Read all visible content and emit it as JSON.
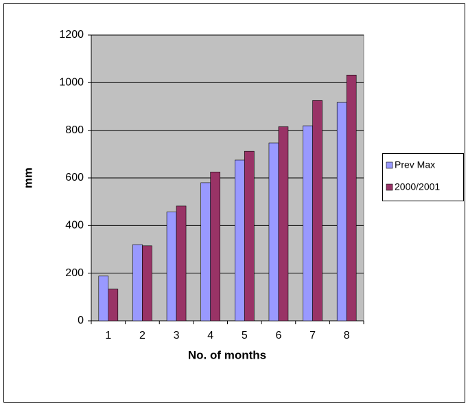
{
  "chart_data": {
    "type": "bar",
    "x_label": "No. of months",
    "y_label": "mm",
    "categories": [
      "1",
      "2",
      "3",
      "4",
      "5",
      "6",
      "7",
      "8"
    ],
    "series": [
      {
        "name": "Prev Max",
        "color": "#9999ff",
        "values": [
          188,
          320,
          457,
          580,
          675,
          747,
          819,
          917
        ]
      },
      {
        "name": "2000/2001",
        "color": "#993366",
        "values": [
          133,
          315,
          482,
          625,
          712,
          815,
          925,
          1032
        ]
      }
    ],
    "ylim": [
      0,
      1200
    ],
    "yticks": [
      0,
      200,
      400,
      600,
      800,
      1000,
      1200
    ],
    "grid": true,
    "legend": "right",
    "plot_background": "#c0c0c0"
  }
}
